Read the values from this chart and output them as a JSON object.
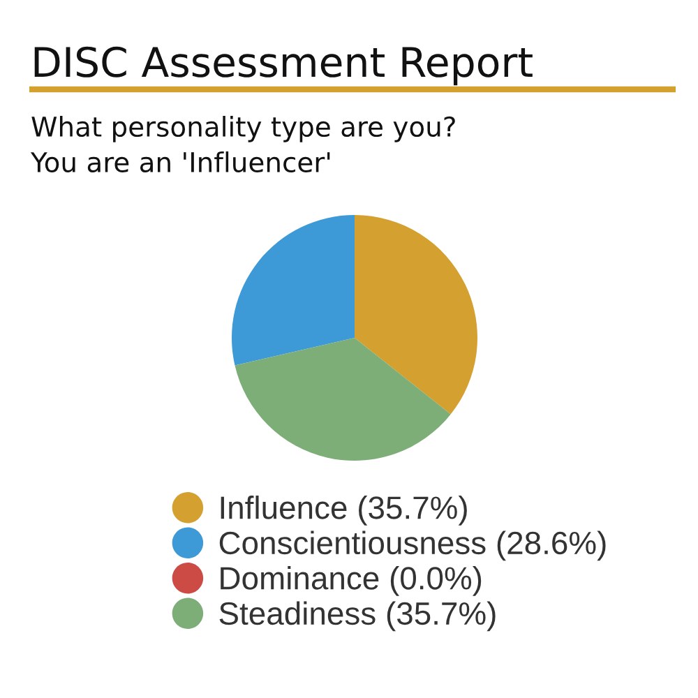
{
  "chart_data": {
    "type": "pie",
    "title": "DISC Assessment Report",
    "subtitle": "What personality type are you?\nYou are an 'Influencer'",
    "categories": [
      "Influence",
      "Conscientiousness",
      "Dominance",
      "Steadiness"
    ],
    "values": [
      35.7,
      28.6,
      0.0,
      35.7
    ],
    "value_labels": [
      "(35.7%)",
      "(28.6%)",
      "(0.0%)",
      "(35.7%)"
    ],
    "colors": [
      "#d4a02f",
      "#3d9ad6",
      "#cc4b45",
      "#7eae78"
    ],
    "legend": "bottom"
  }
}
